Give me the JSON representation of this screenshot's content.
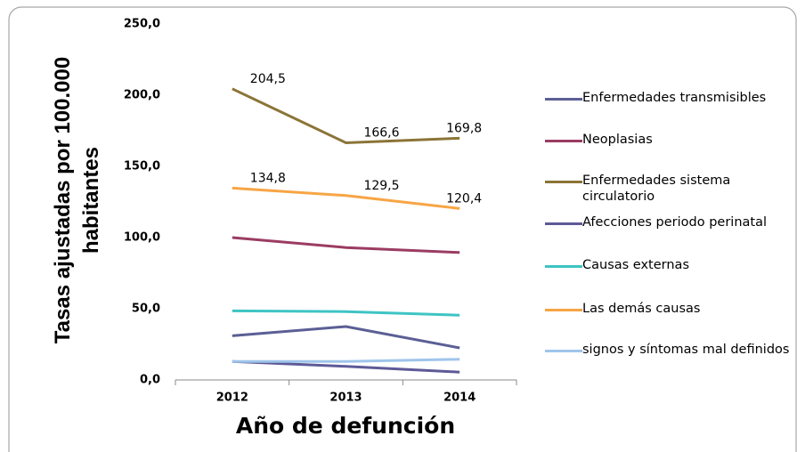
{
  "chart_data": {
    "type": "line",
    "ylabel": [
      "Tasas ajustadas por 100.000",
      "habitantes"
    ],
    "xlabel": "Año de defunción",
    "categories": [
      "2012",
      "2013",
      "2014"
    ],
    "ylim": [
      0,
      250
    ],
    "yticks": [
      {
        "value": 0,
        "label": "0,0"
      },
      {
        "value": 50,
        "label": "50,0"
      },
      {
        "value": 100,
        "label": "100,0"
      },
      {
        "value": 150,
        "label": "150,0"
      },
      {
        "value": 200,
        "label": "200,0"
      },
      {
        "value": 250,
        "label": "250,0"
      }
    ],
    "series": [
      {
        "name": "Enfermedades transmisibles",
        "color": "#5b5f95",
        "values": [
          31,
          37.5,
          22.5
        ]
      },
      {
        "name": "Neoplasias",
        "color": "#9b3c62",
        "values": [
          100,
          93,
          89.5
        ]
      },
      {
        "name": "Enfermedades sistema circulatorio",
        "color": "#8b7437",
        "values": [
          204.5,
          166.6,
          169.8
        ],
        "value_labels": [
          "204,5",
          "166,6",
          "169,8"
        ]
      },
      {
        "name": "Afecciones periodo perinatal",
        "color": "#5e5a97",
        "values": [
          13,
          9.5,
          5.5
        ]
      },
      {
        "name": "Causas externas",
        "color": "#3ec4c4",
        "values": [
          48.5,
          48,
          45.5
        ]
      },
      {
        "name": "Las demás causas",
        "color": "#f7a545",
        "values": [
          134.8,
          129.5,
          120.4
        ],
        "value_labels": [
          "134,8",
          "129,5",
          "120,4"
        ]
      },
      {
        "name": "signos y síntomas mal definidos",
        "color": "#9fc5ea",
        "values": [
          13,
          13,
          14.5
        ]
      }
    ]
  }
}
